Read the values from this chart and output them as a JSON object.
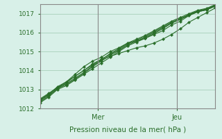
{
  "title": "",
  "xlabel": "Pression niveau de la mer( hPa )",
  "ylabel": "",
  "bg_color": "#d8f0e8",
  "grid_color": "#aed4c0",
  "line_color": "#2a6e2a",
  "marker_color": "#2a6e2a",
  "ylim": [
    1012,
    1017.5
  ],
  "yticks": [
    1012,
    1013,
    1014,
    1015,
    1016,
    1017
  ],
  "day_labels": [
    "Mer",
    "Jeu"
  ],
  "day_positions": [
    0.33,
    0.78
  ],
  "series": [
    [
      1012.3,
      1012.6,
      1013.0,
      1013.2,
      1013.5,
      1013.8,
      1014.1,
      1014.4,
      1014.7,
      1015.0,
      1015.3,
      1015.5,
      1015.7,
      1015.9,
      1016.1,
      1016.4,
      1016.6,
      1016.9,
      1017.1,
      1017.2,
      1017.4
    ],
    [
      1012.5,
      1012.8,
      1013.1,
      1013.4,
      1013.8,
      1014.2,
      1014.5,
      1014.7,
      1015.0,
      1015.2,
      1015.45,
      1015.55,
      1015.7,
      1015.95,
      1016.2,
      1016.5,
      1016.7,
      1016.95,
      1017.15,
      1017.25,
      1017.45
    ],
    [
      1012.4,
      1012.7,
      1013.05,
      1013.35,
      1013.7,
      1014.0,
      1014.35,
      1014.6,
      1014.85,
      1015.1,
      1015.4,
      1015.6,
      1015.8,
      1016.05,
      1016.3,
      1016.55,
      1016.75,
      1016.95,
      1017.12,
      1017.22,
      1017.42
    ],
    [
      1012.45,
      1012.75,
      1013.1,
      1013.3,
      1013.6,
      1013.9,
      1014.25,
      1014.55,
      1014.9,
      1015.15,
      1015.45,
      1015.65,
      1015.85,
      1016.1,
      1016.35,
      1016.6,
      1016.8,
      1017.0,
      1017.18,
      1017.28,
      1017.48
    ],
    [
      1012.35,
      1012.65,
      1013.05,
      1013.25,
      1013.55,
      1013.85,
      1014.2,
      1014.5,
      1014.8,
      1015.05,
      1015.35,
      1015.55,
      1015.75,
      1016.0,
      1016.25,
      1016.5,
      1016.7,
      1016.9,
      1017.1,
      1017.2,
      1017.4
    ]
  ],
  "outlier_series": [
    1012.45,
    1012.75,
    1013.15,
    1013.4,
    1013.7,
    1014.0,
    1014.3,
    1014.55,
    1014.75,
    1014.9,
    1015.05,
    1015.2,
    1015.3,
    1015.45,
    1015.65,
    1015.9,
    1016.2,
    1016.55,
    1016.8,
    1017.05,
    1017.3
  ]
}
